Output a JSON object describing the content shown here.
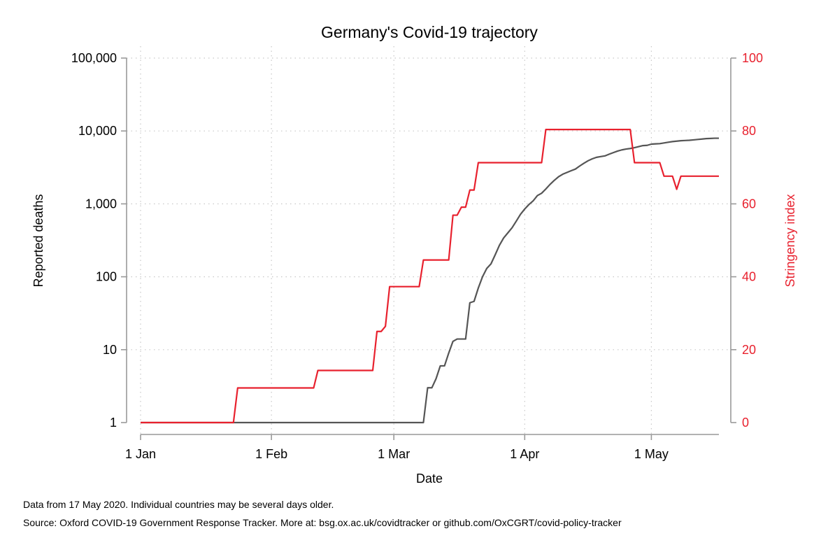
{
  "chart_data": {
    "type": "line",
    "title": "Germany's Covid-19 trajectory",
    "xlabel": "Date",
    "ylabel_left": "Reported deaths",
    "ylabel_right": "Stringency index",
    "left_axis_scale": "log",
    "left_ylim": [
      1,
      100000
    ],
    "left_ticks": [
      {
        "value": 1,
        "label": "1"
      },
      {
        "value": 10,
        "label": "10"
      },
      {
        "value": 100,
        "label": "100"
      },
      {
        "value": 1000,
        "label": "1,000"
      },
      {
        "value": 10000,
        "label": "10,000"
      },
      {
        "value": 100000,
        "label": "100,000"
      }
    ],
    "right_ylim": [
      0,
      100
    ],
    "right_ticks": [
      {
        "value": 0,
        "label": "0"
      },
      {
        "value": 20,
        "label": "20"
      },
      {
        "value": 40,
        "label": "40"
      },
      {
        "value": 60,
        "label": "60"
      },
      {
        "value": 80,
        "label": "80"
      },
      {
        "value": 100,
        "label": "100"
      }
    ],
    "x_range": [
      "2020-01-01",
      "2020-05-17"
    ],
    "x_ticks": [
      {
        "value": "2020-01-01",
        "label": "1 Jan"
      },
      {
        "value": "2020-02-01",
        "label": "1 Feb"
      },
      {
        "value": "2020-03-01",
        "label": "1 Mar"
      },
      {
        "value": "2020-04-01",
        "label": "1 Apr"
      },
      {
        "value": "2020-05-01",
        "label": "1 May"
      }
    ],
    "grid": true,
    "series": [
      {
        "axis": "left",
        "color": "#555555",
        "points": [
          [
            "2020-01-01",
            1
          ],
          [
            "2020-03-08",
            1
          ],
          [
            "2020-03-09",
            3
          ],
          [
            "2020-03-10",
            3
          ],
          [
            "2020-03-11",
            4
          ],
          [
            "2020-03-12",
            6
          ],
          [
            "2020-03-13",
            6
          ],
          [
            "2020-03-14",
            9
          ],
          [
            "2020-03-15",
            13
          ],
          [
            "2020-03-16",
            14
          ],
          [
            "2020-03-17",
            14
          ],
          [
            "2020-03-18",
            14
          ],
          [
            "2020-03-19",
            44
          ],
          [
            "2020-03-20",
            46
          ],
          [
            "2020-03-21",
            70
          ],
          [
            "2020-03-22",
            100
          ],
          [
            "2020-03-23",
            130
          ],
          [
            "2020-03-24",
            150
          ],
          [
            "2020-03-25",
            200
          ],
          [
            "2020-03-26",
            270
          ],
          [
            "2020-03-27",
            340
          ],
          [
            "2020-03-28",
            400
          ],
          [
            "2020-03-29",
            470
          ],
          [
            "2020-03-30",
            580
          ],
          [
            "2020-03-31",
            720
          ],
          [
            "2020-04-01",
            850
          ],
          [
            "2020-04-02",
            980
          ],
          [
            "2020-04-03",
            1100
          ],
          [
            "2020-04-04",
            1300
          ],
          [
            "2020-04-05",
            1400
          ],
          [
            "2020-04-06",
            1600
          ],
          [
            "2020-04-07",
            1850
          ],
          [
            "2020-04-08",
            2100
          ],
          [
            "2020-04-09",
            2350
          ],
          [
            "2020-04-10",
            2550
          ],
          [
            "2020-04-11",
            2700
          ],
          [
            "2020-04-12",
            2850
          ],
          [
            "2020-04-13",
            3000
          ],
          [
            "2020-04-14",
            3300
          ],
          [
            "2020-04-15",
            3600
          ],
          [
            "2020-04-16",
            3900
          ],
          [
            "2020-04-17",
            4150
          ],
          [
            "2020-04-18",
            4350
          ],
          [
            "2020-04-19",
            4450
          ],
          [
            "2020-04-20",
            4550
          ],
          [
            "2020-04-21",
            4800
          ],
          [
            "2020-04-22",
            5050
          ],
          [
            "2020-04-23",
            5300
          ],
          [
            "2020-04-24",
            5500
          ],
          [
            "2020-04-25",
            5650
          ],
          [
            "2020-04-26",
            5750
          ],
          [
            "2020-04-27",
            5900
          ],
          [
            "2020-04-28",
            6100
          ],
          [
            "2020-04-29",
            6300
          ],
          [
            "2020-04-30",
            6350
          ],
          [
            "2020-05-01",
            6600
          ],
          [
            "2020-05-02",
            6650
          ],
          [
            "2020-05-03",
            6700
          ],
          [
            "2020-05-04",
            6850
          ],
          [
            "2020-05-05",
            7000
          ],
          [
            "2020-05-06",
            7150
          ],
          [
            "2020-05-07",
            7250
          ],
          [
            "2020-05-08",
            7350
          ],
          [
            "2020-05-09",
            7400
          ],
          [
            "2020-05-10",
            7450
          ],
          [
            "2020-05-11",
            7550
          ],
          [
            "2020-05-12",
            7650
          ],
          [
            "2020-05-13",
            7750
          ],
          [
            "2020-05-14",
            7850
          ],
          [
            "2020-05-15",
            7900
          ],
          [
            "2020-05-16",
            7950
          ],
          [
            "2020-05-17",
            7950
          ]
        ]
      },
      {
        "axis": "right",
        "color": "#e8212e",
        "points": [
          [
            "2020-01-01",
            0
          ],
          [
            "2020-01-23",
            0
          ],
          [
            "2020-01-24",
            9.5
          ],
          [
            "2020-02-11",
            9.5
          ],
          [
            "2020-02-12",
            14.3
          ],
          [
            "2020-02-25",
            14.3
          ],
          [
            "2020-02-26",
            25
          ],
          [
            "2020-02-27",
            25
          ],
          [
            "2020-02-28",
            26.4
          ],
          [
            "2020-02-29",
            37.3
          ],
          [
            "2020-03-07",
            37.3
          ],
          [
            "2020-03-08",
            44.6
          ],
          [
            "2020-03-14",
            44.6
          ],
          [
            "2020-03-15",
            56.9
          ],
          [
            "2020-03-16",
            56.9
          ],
          [
            "2020-03-17",
            59.1
          ],
          [
            "2020-03-18",
            59.1
          ],
          [
            "2020-03-19",
            63.8
          ],
          [
            "2020-03-20",
            63.8
          ],
          [
            "2020-03-21",
            71.3
          ],
          [
            "2020-04-05",
            71.3
          ],
          [
            "2020-04-06",
            80.4
          ],
          [
            "2020-04-26",
            80.4
          ],
          [
            "2020-04-27",
            71.3
          ],
          [
            "2020-05-03",
            71.3
          ],
          [
            "2020-05-04",
            67.6
          ],
          [
            "2020-05-05",
            67.6
          ],
          [
            "2020-05-06",
            67.6
          ],
          [
            "2020-05-07",
            64.0
          ],
          [
            "2020-05-08",
            67.6
          ],
          [
            "2020-05-17",
            67.6
          ]
        ]
      }
    ]
  },
  "notes": {
    "line1": "Data from 17 May 2020. Individual countries may be several days older.",
    "line2": "Source: Oxford COVID-19 Government Response Tracker. More at: bsg.ox.ac.uk/covidtracker or github.com/OxCGRT/covid-policy-tracker"
  },
  "colors": {
    "deaths_line": "#555555",
    "stringency_line": "#e8212e",
    "right_axis_labels": "#e8212e",
    "axis": "#999999",
    "grid": "#c8c8c8"
  }
}
